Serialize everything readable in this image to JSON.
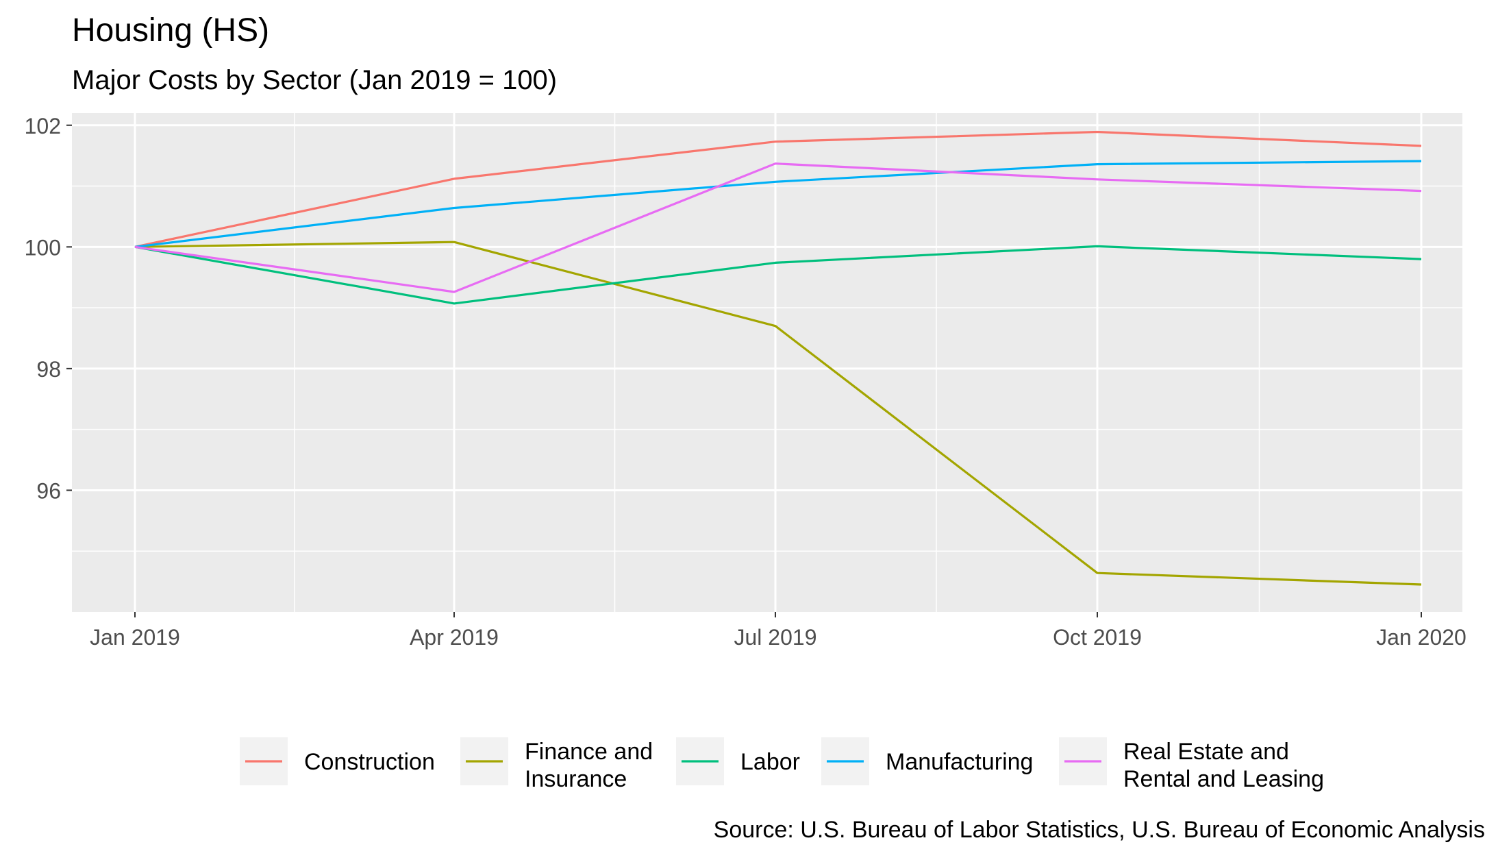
{
  "chart_data": {
    "type": "line",
    "title": "Housing (HS)",
    "subtitle": "Major Costs by Sector (Jan 2019 = 100)",
    "caption": "Source: U.S. Bureau of Labor Statistics, U.S. Bureau of Economic Analysis",
    "xlabel": "",
    "ylabel": "",
    "x": [
      "2019-01-01",
      "2019-04-01",
      "2019-07-01",
      "2019-10-01",
      "2020-01-01"
    ],
    "x_ticks": [
      "Jan 2019",
      "Apr 2019",
      "Jul 2019",
      "Oct 2019",
      "Jan 2020"
    ],
    "y_ticks": [
      96,
      98,
      100,
      102
    ],
    "ylim": [
      94.0,
      102.2
    ],
    "grid": true,
    "legend_position": "bottom",
    "series": [
      {
        "name": "Construction",
        "color": "#F8766D",
        "values": [
          100,
          101.12,
          101.73,
          101.89,
          101.66
        ]
      },
      {
        "name": "Finance and\nInsurance",
        "color": "#A3A500",
        "values": [
          100,
          100.08,
          98.7,
          94.64,
          94.45
        ]
      },
      {
        "name": "Labor",
        "color": "#00BF7D",
        "values": [
          100,
          99.07,
          99.74,
          100.01,
          99.8
        ]
      },
      {
        "name": "Manufacturing",
        "color": "#00B0F6",
        "values": [
          100,
          100.64,
          101.07,
          101.36,
          101.41
        ]
      },
      {
        "name": "Real Estate and\nRental and Leasing",
        "color": "#E76BF3",
        "values": [
          100,
          99.26,
          101.37,
          101.11,
          100.92
        ]
      }
    ]
  }
}
